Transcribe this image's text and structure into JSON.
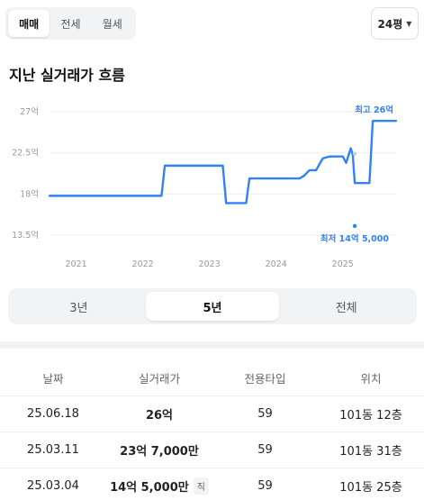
{
  "trade_tabs": [
    {
      "label": "매매",
      "active": true
    },
    {
      "label": "전세",
      "active": false
    },
    {
      "label": "월세",
      "active": false
    }
  ],
  "size_select": {
    "label": "24평"
  },
  "section_title": "지난 실거래가 흐름",
  "chart_data": {
    "type": "line",
    "title": "",
    "y_ticks": [
      "27억",
      "22.5억",
      "18억",
      "13.5억"
    ],
    "y_values": [
      27,
      22.5,
      18,
      13.5
    ],
    "ylim": [
      13.5,
      27
    ],
    "x_ticks": [
      "2021",
      "2022",
      "2023",
      "2024",
      "2025"
    ],
    "xlim": [
      2020.6,
      2025.8
    ],
    "grid": true,
    "line_color": "#3182f6",
    "series": [
      {
        "x": [
          2020.6,
          2021.0,
          2021.5,
          2022.0,
          2022.28,
          2022.33,
          2022.5,
          2023.0,
          2023.2,
          2023.25,
          2023.3,
          2023.5,
          2023.55,
          2023.6,
          2023.8,
          2024.0,
          2024.2,
          2024.35,
          2024.42,
          2024.5,
          2024.6,
          2024.7,
          2024.8,
          2024.95,
          2025.0,
          2025.05,
          2025.12,
          2025.15,
          2025.18,
          2025.3,
          2025.35,
          2025.4,
          2025.45,
          2025.8
        ],
        "y": [
          17.8,
          17.8,
          17.8,
          17.8,
          17.8,
          21.1,
          21.1,
          21.1,
          21.1,
          17.0,
          17.0,
          17.0,
          17.0,
          19.7,
          19.7,
          19.7,
          19.7,
          19.7,
          20.0,
          20.6,
          20.6,
          21.9,
          22.1,
          22.1,
          22.1,
          21.4,
          23.0,
          22.3,
          19.2,
          19.2,
          19.2,
          19.2,
          26.0,
          26.0
        ]
      }
    ],
    "points": [
      {
        "x": 2025.18,
        "y": 22.4,
        "color": "#c5cdf5"
      },
      {
        "x": 2025.18,
        "y": 14.5,
        "color": "#3182f6"
      }
    ],
    "annotations": [
      {
        "label": "최고 26억"
      },
      {
        "label": "최저 14억 5,000"
      }
    ]
  },
  "range_tabs": [
    {
      "label": "3년",
      "active": false
    },
    {
      "label": "5년",
      "active": true
    },
    {
      "label": "전체",
      "active": false
    }
  ],
  "table": {
    "headers": [
      "날짜",
      "실거래가",
      "전용타입",
      "위치"
    ],
    "rows": [
      {
        "date": "25.06.18",
        "price": "26억",
        "type": "59",
        "location": "101동 12층",
        "tag": ""
      },
      {
        "date": "25.03.11",
        "price": "23억 7,000만",
        "type": "59",
        "location": "101동 31층",
        "tag": ""
      },
      {
        "date": "25.03.04",
        "price": "14억 5,000만",
        "type": "59",
        "location": "101동 25층",
        "tag": "직"
      }
    ]
  }
}
